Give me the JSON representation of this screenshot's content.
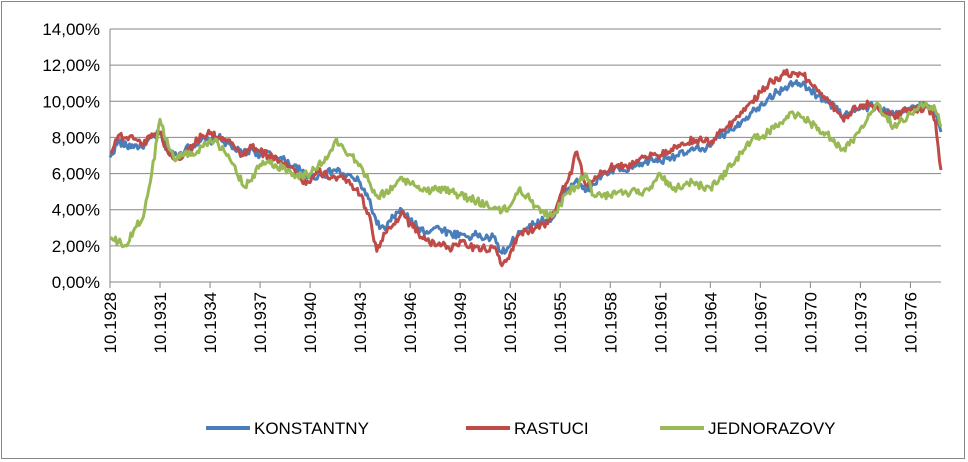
{
  "chart_data": {
    "type": "line",
    "title": "",
    "xlabel": "",
    "ylabel": "",
    "ylim": [
      0,
      14
    ],
    "y_tick_values": [
      0,
      2,
      4,
      6,
      8,
      10,
      12,
      14
    ],
    "y_tick_labels": [
      "0,00%",
      "2,00%",
      "4,00%",
      "6,00%",
      "8,00%",
      "10,00%",
      "12,00%",
      "14,00%"
    ],
    "x_tick_labels": [
      "10.1928",
      "10.1931",
      "10.1934",
      "10.1937",
      "10.1940",
      "10.1943",
      "10.1946",
      "10.1949",
      "10.1952",
      "10.1955",
      "10.1958",
      "10.1961",
      "10.1964",
      "10.1967",
      "10.1970",
      "10.1973",
      "10.1976"
    ],
    "x_range": [
      "10.1928",
      "08.1978"
    ],
    "grid": "horizontal",
    "legend_position": "bottom",
    "x": [
      "10.1928",
      "04.1929",
      "10.1929",
      "04.1930",
      "10.1930",
      "04.1931",
      "10.1931",
      "04.1932",
      "10.1932",
      "04.1933",
      "10.1933",
      "04.1934",
      "10.1934",
      "04.1935",
      "10.1935",
      "04.1936",
      "10.1936",
      "04.1937",
      "10.1937",
      "04.1938",
      "10.1938",
      "04.1939",
      "10.1939",
      "04.1940",
      "10.1940",
      "04.1941",
      "10.1941",
      "04.1942",
      "10.1942",
      "04.1943",
      "10.1943",
      "04.1944",
      "10.1944",
      "04.1945",
      "10.1945",
      "04.1946",
      "10.1946",
      "04.1947",
      "10.1947",
      "04.1948",
      "10.1948",
      "04.1949",
      "10.1949",
      "04.1950",
      "10.1950",
      "04.1951",
      "10.1951",
      "04.1952",
      "10.1952",
      "04.1953",
      "10.1953",
      "04.1954",
      "10.1954",
      "04.1955",
      "10.1955",
      "04.1956",
      "10.1956",
      "04.1957",
      "10.1957",
      "04.1958",
      "10.1958",
      "04.1959",
      "10.1959",
      "04.1960",
      "10.1960",
      "04.1961",
      "10.1961",
      "04.1962",
      "10.1962",
      "04.1963",
      "10.1963",
      "04.1964",
      "10.1964",
      "04.1965",
      "10.1965",
      "04.1966",
      "10.1966",
      "04.1967",
      "10.1967",
      "04.1968",
      "10.1968",
      "04.1969",
      "10.1969",
      "04.1970",
      "10.1970",
      "04.1971",
      "10.1971",
      "04.1972",
      "10.1972",
      "04.1973",
      "10.1973",
      "04.1974",
      "10.1974",
      "04.1975",
      "10.1975",
      "04.1976",
      "10.1976",
      "04.1977",
      "10.1977",
      "04.1978",
      "08.1978"
    ],
    "series": [
      {
        "name": "KONSTANTNY",
        "color": "#4A7EBB",
        "values": [
          6.9,
          7.8,
          7.5,
          7.6,
          7.4,
          8.0,
          8.2,
          7.2,
          7.0,
          7.3,
          7.6,
          7.9,
          7.8,
          8.0,
          7.7,
          7.3,
          7.1,
          7.4,
          7.0,
          7.2,
          6.9,
          6.7,
          6.4,
          6.1,
          5.8,
          5.9,
          6.0,
          6.2,
          6.0,
          5.8,
          5.5,
          4.6,
          3.2,
          2.9,
          3.6,
          4.0,
          3.4,
          3.0,
          2.8,
          3.0,
          2.9,
          2.6,
          2.7,
          2.5,
          2.6,
          2.4,
          2.5,
          1.6,
          2.0,
          2.8,
          3.0,
          3.2,
          3.4,
          3.5,
          4.5,
          5.2,
          5.7,
          5.0,
          5.4,
          5.9,
          6.1,
          6.3,
          6.1,
          6.4,
          6.6,
          6.8,
          6.7,
          6.9,
          7.0,
          7.1,
          7.3,
          7.4,
          7.5,
          8.0,
          8.3,
          8.6,
          9.0,
          9.4,
          9.8,
          10.2,
          10.5,
          10.8,
          11.0,
          10.9,
          10.6,
          10.3,
          10.0,
          9.6,
          9.2,
          9.4,
          9.6,
          9.7,
          9.8,
          9.4,
          9.3,
          9.5,
          9.6,
          9.7,
          9.8,
          9.2,
          8.3
        ]
      },
      {
        "name": "RASTUCI",
        "color": "#BE4B48",
        "values": [
          7.2,
          8.1,
          8.0,
          7.9,
          7.6,
          8.2,
          8.3,
          7.1,
          6.8,
          7.1,
          7.6,
          8.1,
          8.2,
          8.0,
          7.8,
          7.4,
          7.0,
          7.5,
          7.2,
          7.0,
          6.8,
          6.6,
          6.3,
          5.6,
          5.5,
          6.1,
          5.9,
          5.8,
          5.7,
          5.4,
          4.8,
          3.8,
          1.7,
          2.7,
          3.2,
          3.9,
          3.2,
          2.7,
          2.3,
          2.0,
          2.2,
          1.8,
          2.3,
          1.9,
          2.0,
          1.8,
          1.9,
          0.9,
          1.6,
          2.6,
          2.8,
          3.0,
          3.2,
          3.5,
          4.8,
          5.7,
          7.2,
          5.4,
          5.6,
          6.0,
          6.3,
          6.5,
          6.4,
          6.6,
          6.9,
          7.1,
          7.0,
          7.2,
          7.4,
          7.6,
          7.9,
          7.8,
          7.7,
          8.2,
          8.6,
          9.0,
          9.6,
          10.0,
          10.5,
          11.0,
          11.3,
          11.5,
          11.6,
          11.5,
          11.0,
          10.6,
          10.2,
          9.6,
          8.9,
          9.5,
          9.8,
          9.8,
          9.7,
          9.3,
          9.2,
          9.4,
          9.5,
          9.6,
          9.7,
          8.9,
          6.2
        ]
      },
      {
        "name": "JEDNORAZOVY",
        "color": "#98B954",
        "values": [
          2.4,
          2.2,
          2.0,
          3.0,
          3.6,
          6.0,
          9.0,
          7.5,
          6.8,
          7.2,
          7.0,
          7.5,
          7.9,
          7.6,
          7.0,
          6.4,
          5.3,
          5.6,
          6.5,
          6.7,
          6.4,
          6.3,
          6.0,
          5.9,
          6.0,
          6.5,
          6.8,
          7.8,
          7.4,
          7.0,
          6.5,
          5.6,
          4.8,
          4.9,
          5.3,
          5.8,
          5.4,
          5.3,
          5.0,
          5.3,
          5.1,
          5.0,
          4.8,
          4.6,
          4.5,
          4.3,
          4.1,
          3.9,
          4.2,
          5.1,
          4.8,
          4.2,
          3.9,
          3.6,
          4.3,
          5.0,
          5.3,
          6.0,
          4.8,
          4.7,
          4.8,
          5.0,
          4.9,
          5.1,
          5.0,
          5.2,
          6.0,
          5.3,
          5.2,
          5.4,
          5.5,
          5.3,
          5.2,
          5.6,
          6.2,
          6.7,
          7.3,
          7.9,
          8.0,
          8.3,
          8.6,
          9.0,
          9.3,
          9.1,
          8.8,
          8.5,
          8.2,
          7.6,
          7.4,
          7.8,
          8.5,
          9.3,
          9.9,
          9.2,
          8.6,
          9.0,
          9.3,
          9.7,
          9.8,
          9.5,
          8.6
        ]
      }
    ]
  }
}
